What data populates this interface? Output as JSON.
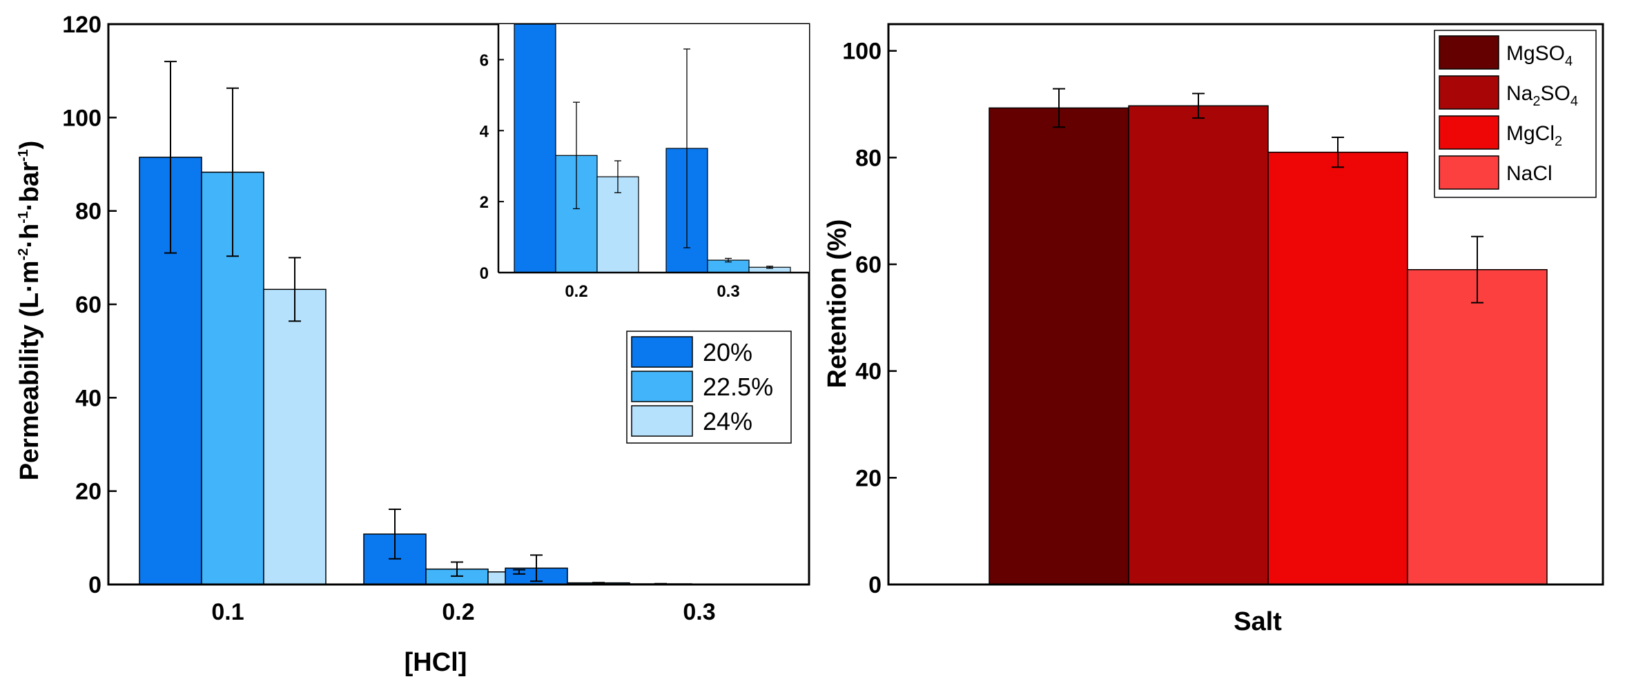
{
  "chart_data": [
    {
      "type": "bar",
      "title": "",
      "xlabel": "[HCl]",
      "ylabel": "Permeability (L·m-2·h-1·bar-1)",
      "ylabel_parts": {
        "base": "Permeability (L·m",
        "e1": "-2",
        "m1": "·h",
        "e2": "-1",
        "m2": "·bar",
        "e3": "-1",
        "end": ")"
      },
      "categories": [
        "0.1",
        "0.2",
        "0.3"
      ],
      "ylim": [
        0,
        120
      ],
      "yticks": [
        0,
        20,
        40,
        60,
        80,
        100,
        120
      ],
      "legend_position": "right",
      "series": [
        {
          "name": "20%",
          "color": "#0a78ee",
          "values": [
            91.5,
            10.8,
            3.5
          ],
          "errors": [
            20.5,
            5.3,
            2.8
          ]
        },
        {
          "name": "22.5%",
          "color": "#42b4fa",
          "values": [
            88.3,
            3.3,
            0.35
          ],
          "errors": [
            18.0,
            1.5,
            0.05
          ]
        },
        {
          "name": "24%",
          "color": "#b5e1fc",
          "values": [
            63.2,
            2.7,
            0.15
          ],
          "errors": [
            6.8,
            0.45,
            0.03
          ]
        }
      ],
      "inset": {
        "categories": [
          "0.2",
          "0.3"
        ],
        "ylim": [
          0,
          7
        ],
        "yticks": [
          0,
          2,
          4,
          6
        ]
      }
    },
    {
      "type": "bar",
      "title": "",
      "xlabel": "Salt",
      "ylabel": "Retention (%)",
      "ylim": [
        0,
        105
      ],
      "yticks": [
        0,
        20,
        40,
        60,
        80,
        100
      ],
      "legend_position": "top-right",
      "series": [
        {
          "name": "MgSO4",
          "label_base": "MgSO",
          "label_sub": "4",
          "label_tail": "",
          "color": "#640000",
          "value": 89.3,
          "error": 3.6
        },
        {
          "name": "Na2SO4",
          "label_base": "Na",
          "label_sub": "2",
          "label_tail": "SO",
          "label_sub2": "4",
          "color": "#a80606",
          "value": 89.7,
          "error": 2.3
        },
        {
          "name": "MgCl2",
          "label_base": "MgCl",
          "label_sub": "2",
          "label_tail": "",
          "color": "#ee0606",
          "value": 81.0,
          "error": 2.8
        },
        {
          "name": "NaCl",
          "label_base": "NaCl",
          "label_sub": "",
          "label_tail": "",
          "color": "#fc4040",
          "value": 59.0,
          "error": 6.2
        }
      ]
    }
  ]
}
